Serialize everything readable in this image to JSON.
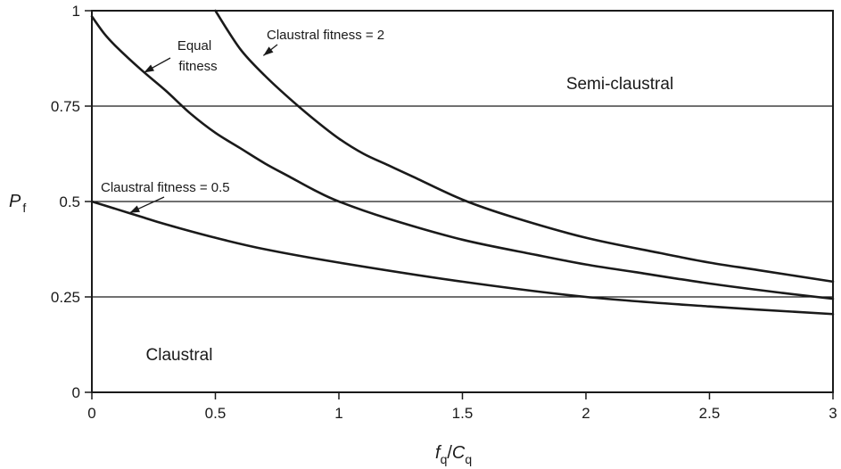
{
  "chart_data": {
    "type": "line",
    "xlabel": {
      "main": "f",
      "sub": "q",
      "sep": "/",
      "main2": "C",
      "sub2": "q"
    },
    "ylabel": {
      "main": "P",
      "sub": "f"
    },
    "xlim": [
      0,
      3
    ],
    "ylim": [
      0,
      1
    ],
    "x_ticks": [
      0,
      0.5,
      1,
      1.5,
      2,
      2.5,
      3
    ],
    "x_tick_labels": [
      "0",
      "0.5",
      "1",
      "1.5",
      "2",
      "2.5",
      "3"
    ],
    "y_ticks": [
      0,
      0.25,
      0.5,
      0.75,
      1
    ],
    "y_tick_labels": [
      "0",
      "0.25",
      "0.5",
      "0.75",
      "1"
    ],
    "horizontal_gridlines": [
      0.25,
      0.5,
      0.75
    ],
    "series": [
      {
        "label": "Equal fitness",
        "x": [
          0,
          0.05,
          0.1,
          0.2,
          0.3,
          0.4,
          0.5,
          0.6,
          0.7,
          0.8,
          0.9,
          1,
          1.2,
          1.5,
          1.8,
          2,
          2.2,
          2.5,
          2.8,
          3
        ],
        "y": [
          0.985,
          0.94,
          0.905,
          0.845,
          0.79,
          0.73,
          0.68,
          0.64,
          0.6,
          0.565,
          0.53,
          0.5,
          0.455,
          0.4,
          0.36,
          0.335,
          0.315,
          0.285,
          0.26,
          0.245
        ]
      },
      {
        "label": "Claustral fitness = 2",
        "x": [
          0.5,
          0.6,
          0.7,
          0.8,
          0.9,
          1,
          1.1,
          1.2,
          1.3,
          1.5,
          1.7,
          2,
          2.3,
          2.5,
          2.7,
          3
        ],
        "y": [
          1,
          0.9,
          0.83,
          0.77,
          0.715,
          0.665,
          0.625,
          0.595,
          0.565,
          0.505,
          0.46,
          0.405,
          0.365,
          0.34,
          0.32,
          0.29
        ]
      },
      {
        "label": "Claustral fitness = 0.5",
        "x": [
          0,
          0.1,
          0.2,
          0.3,
          0.5,
          0.7,
          1,
          1.5,
          2,
          2.5,
          3
        ],
        "y": [
          0.5,
          0.48,
          0.46,
          0.44,
          0.405,
          0.375,
          0.34,
          0.29,
          0.25,
          0.225,
          0.205
        ]
      }
    ],
    "annotations": {
      "equal_fitness": {
        "lines": [
          "Equal",
          "fitness"
        ],
        "arrow_to": [
          0.2,
          0.845
        ]
      },
      "fitness_2": {
        "text": "Claustral fitness = 2",
        "arrow_to": [
          0.68,
          0.845
        ]
      },
      "fitness_05": {
        "text": "Claustral fitness = 0.5",
        "arrow_to": [
          0.16,
          0.475
        ]
      }
    },
    "regions": {
      "upper": "Semi-claustral",
      "lower": "Claustral"
    }
  }
}
